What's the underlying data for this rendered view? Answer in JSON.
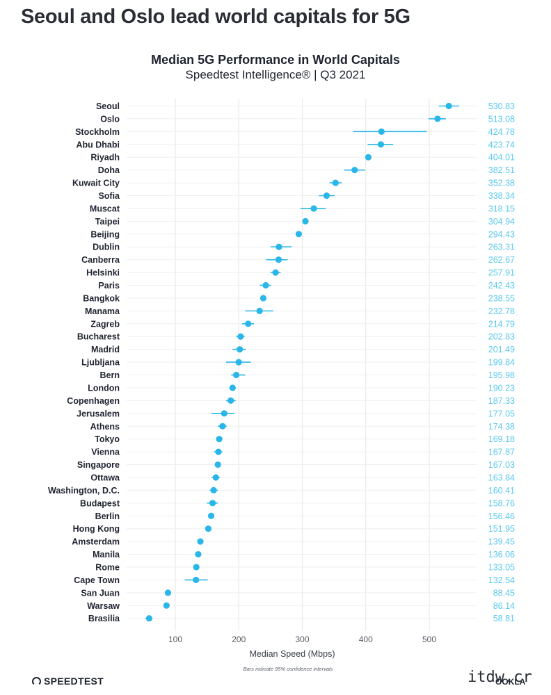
{
  "headline": "Seoul and Oslo lead world capitals for 5G",
  "footer": {
    "brand": "SPEEDTEST",
    "watermark": "itdw.cr",
    "ookla": "OOKLA"
  },
  "colors": {
    "accent": "#29b6e8",
    "value_text": "#5ac8ee",
    "grid": "#e6e6e6",
    "label_text": "#1f2430"
  },
  "chart_data": {
    "type": "scatter",
    "title": "Median 5G Performance in World Capitals",
    "subtitle": "Speedtest Intelligence® | Q3 2021",
    "xlabel": "Median Speed (Mbps)",
    "ylabel": "",
    "note": "Bars indicate 95% confidence intervals",
    "xlim": [
      0,
      570
    ],
    "xticks": [
      100,
      200,
      300,
      400,
      500
    ],
    "grid": true,
    "categories": [
      "Seoul",
      "Oslo",
      "Stockholm",
      "Abu Dhabi",
      "Riyadh",
      "Doha",
      "Kuwait City",
      "Sofia",
      "Muscat",
      "Taipei",
      "Beijing",
      "Dublin",
      "Canberra",
      "Helsinki",
      "Paris",
      "Bangkok",
      "Manama",
      "Zagreb",
      "Bucharest",
      "Madrid",
      "Ljubljana",
      "Bern",
      "London",
      "Copenhagen",
      "Jerusalem",
      "Athens",
      "Tokyo",
      "Vienna",
      "Singapore",
      "Ottawa",
      "Washington, D.C.",
      "Budapest",
      "Berlin",
      "Hong Kong",
      "Amsterdam",
      "Manila",
      "Rome",
      "Cape Town",
      "San Juan",
      "Warsaw",
      "Brasilia"
    ],
    "values": [
      530.83,
      513.08,
      424.78,
      423.74,
      404.01,
      382.51,
      352.38,
      338.34,
      318.15,
      304.94,
      294.43,
      263.31,
      262.67,
      257.91,
      242.43,
      238.55,
      232.78,
      214.79,
      202.83,
      201.49,
      199.84,
      195.98,
      190.23,
      187.33,
      177.05,
      174.38,
      169.18,
      167.87,
      167.03,
      163.84,
      160.41,
      158.76,
      156.46,
      151.95,
      139.45,
      136.06,
      133.05,
      132.54,
      88.45,
      86.14,
      58.81
    ],
    "value_labels": [
      "530.83",
      "513.08",
      "424.78",
      "423.74",
      "404.01",
      "382.51",
      "352.38",
      "338.34",
      "318.15",
      "304.94",
      "294.43",
      "263.31",
      "262.67",
      "257.91",
      "242.43",
      "238.55",
      "232.78",
      "214.79",
      "202.83",
      "201.49",
      "199.84",
      "195.98",
      "190.23",
      "187.33",
      "177.05",
      "174.38",
      "169.18",
      "167.87",
      "167.03",
      "163.84",
      "160.41",
      "158.76",
      "156.46",
      "151.95",
      "139.45",
      "136.06",
      "133.05",
      "132.54",
      "88.45",
      "86.14",
      "58.81"
    ],
    "ci_low": [
      515,
      499,
      380,
      403,
      400,
      366,
      343,
      326,
      297,
      300,
      291,
      250,
      243,
      250,
      233,
      234,
      210,
      205,
      196,
      190,
      180,
      188,
      186,
      180,
      157,
      167,
      165,
      161,
      163,
      157,
      154,
      150,
      152,
      148,
      135,
      131,
      130,
      115,
      84,
      83,
      53
    ],
    "ci_high": [
      547,
      526,
      496,
      443,
      408,
      399,
      362,
      351,
      337,
      310,
      298,
      283,
      277,
      266,
      251,
      243,
      254,
      224,
      209,
      211,
      219,
      210,
      194,
      195,
      193,
      181,
      173,
      174,
      171,
      170,
      167,
      167,
      161,
      156,
      144,
      141,
      136,
      151,
      93,
      90,
      64
    ]
  }
}
